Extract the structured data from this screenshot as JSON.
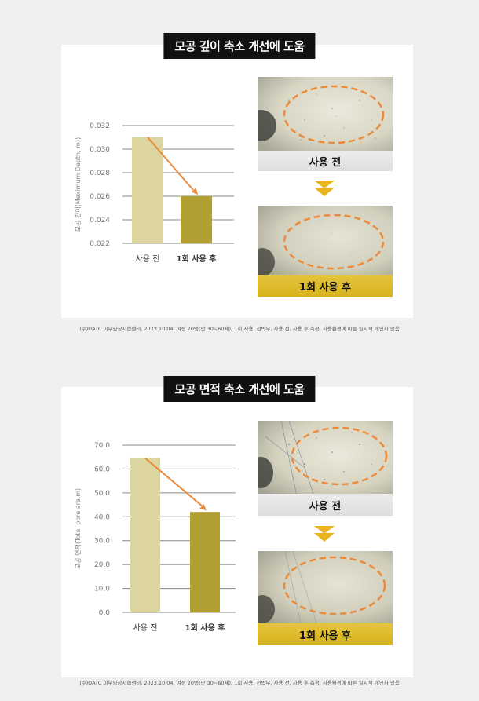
{
  "sections": [
    {
      "title": "모공 깊이 축소 개선에 도움",
      "before_label": "사용 전",
      "after_label": "1회 사용 후",
      "footnote": "(주)OATC 피부임상시험센터, 2023.10.04, 여성 20명(만 30~60세), 1회 사용, 전박부, 사용 전, 사용 후 측정, 사용환경에 따른 일시적 개인차 있음"
    },
    {
      "title": "모공 면적 축소 개선에 도움",
      "before_label": "사용 전",
      "after_label": "1회 사용 후",
      "footnote": "(주)OATC 피부임상시험센터, 2023.10.04, 여성 20명(만 30~60세), 1회 사용, 전박부, 사용 전, 사용 후 측정, 사용환경에 따른 일시적 개인차 있음"
    }
  ],
  "chart_data": [
    {
      "type": "bar",
      "title": "모공 깊이 축소 개선에 도움",
      "ylabel": "모공 깊이(Meximum Depth, m))",
      "categories": [
        "사용 전",
        "1회 사용 후"
      ],
      "values": [
        0.031,
        0.026
      ],
      "ylim": [
        0.022,
        0.032
      ],
      "yticks": [
        0.022,
        0.024,
        0.026,
        0.028,
        0.03,
        0.032
      ],
      "ytick_labels": [
        "0.022",
        "0.024",
        "0.026",
        "0.028",
        "0.030",
        "0.032"
      ],
      "bar_colors": [
        "#dcd59f",
        "#b19f31"
      ],
      "arrow_color": "#e98a3c",
      "grid": true
    },
    {
      "type": "bar",
      "title": "모공 면적 축소 개선에 도움",
      "ylabel": "모공 면적(Total pore are,m)",
      "categories": [
        "사용 전",
        "1회 사용 후"
      ],
      "values": [
        64.5,
        42.0
      ],
      "ylim": [
        0,
        70
      ],
      "yticks": [
        0,
        10,
        20,
        30,
        40,
        50,
        60,
        70
      ],
      "ytick_labels": [
        "0.0",
        "10.0",
        "20.0",
        "30.0",
        "40.0",
        "50.0",
        "60.0",
        "70.0"
      ],
      "bar_colors": [
        "#dcd59f",
        "#b19f31"
      ],
      "arrow_color": "#e98a3c",
      "grid": true
    }
  ]
}
